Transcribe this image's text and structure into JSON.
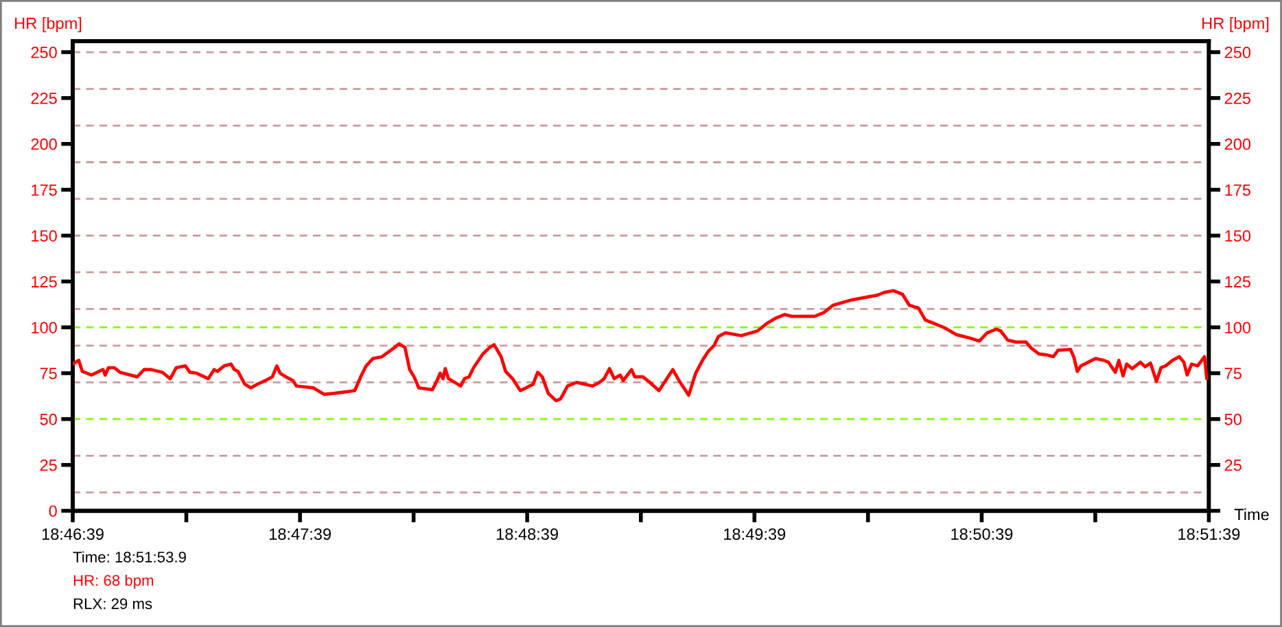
{
  "chart_data": {
    "type": "line",
    "xlabel": "Time",
    "ylabel": "HR [bpm]",
    "y2label": "HR [bpm]",
    "color": "#ff0000",
    "marker": "none",
    "line_style": "solid",
    "grid": false,
    "legend": false,
    "xlim": [
      18.7775,
      18.86083
    ],
    "xticks": [
      {
        "value": 18.7775,
        "label": "18:46:39"
      },
      {
        "value": 18.78583,
        "label": null
      },
      {
        "value": 18.79417,
        "label": "18:47:39"
      },
      {
        "value": 18.8025,
        "label": null
      },
      {
        "value": 18.81083,
        "label": "18:48:39"
      },
      {
        "value": 18.81917,
        "label": null
      },
      {
        "value": 18.8275,
        "label": "18:49:39"
      },
      {
        "value": 18.83583,
        "label": null
      },
      {
        "value": 18.84417,
        "label": "18:50:39"
      },
      {
        "value": 18.8525,
        "label": null
      },
      {
        "value": 18.86083,
        "label": "18:51:39"
      }
    ],
    "ylim": [
      0,
      256
    ],
    "yticks": [
      0,
      25,
      50,
      75,
      100,
      125,
      150,
      175,
      200,
      225,
      250
    ],
    "y2lim": [
      0,
      256
    ],
    "y2ticks": [
      {
        "value": 0,
        "label": null
      },
      25,
      50,
      75,
      100,
      125,
      150,
      175,
      200,
      225,
      250
    ],
    "ref_lines": [
      {
        "axis": "y",
        "value": 10,
        "color": "#cc9999",
        "line_style": "dashed"
      },
      {
        "axis": "y",
        "value": 30,
        "color": "#cc9999",
        "line_style": "dashed"
      },
      {
        "axis": "y",
        "value": 50,
        "color": "#80ff00",
        "line_style": "dashed"
      },
      {
        "axis": "y",
        "value": 70,
        "color": "#cc9999",
        "line_style": "dashed"
      },
      {
        "axis": "y",
        "value": 90,
        "color": "#cc9999",
        "line_style": "dashed"
      },
      {
        "axis": "y",
        "value": 100,
        "color": "#80ff00",
        "line_style": "dashed"
      },
      {
        "axis": "y",
        "value": 110,
        "color": "#cc9999",
        "line_style": "dashed"
      },
      {
        "axis": "y",
        "value": 130,
        "color": "#cc9999",
        "line_style": "dashed"
      },
      {
        "axis": "y",
        "value": 150,
        "color": "#cc9999",
        "line_style": "dashed"
      },
      {
        "axis": "y",
        "value": 170,
        "color": "#cc9999",
        "line_style": "dashed"
      },
      {
        "axis": "y",
        "value": 190,
        "color": "#cc9999",
        "line_style": "dashed"
      },
      {
        "axis": "y",
        "value": 210,
        "color": "#cc9999",
        "line_style": "dashed"
      },
      {
        "axis": "y",
        "value": 230,
        "color": "#cc9999",
        "line_style": "dashed"
      },
      {
        "axis": "y",
        "value": 250,
        "color": "#cc9999",
        "line_style": "dashed"
      }
    ],
    "annotations": [
      "Time: 18:51:53.9",
      "HR: 68 bpm",
      "RLX: 29 ms"
    ],
    "x": [
      18.7775,
      18.77794,
      18.7782,
      18.77888,
      18.77972,
      18.77988,
      18.78012,
      18.78055,
      18.78096,
      18.78223,
      18.78274,
      18.78324,
      18.78408,
      18.78465,
      18.78509,
      18.78576,
      18.78609,
      18.7866,
      18.78744,
      18.78787,
      18.78811,
      18.78861,
      18.78911,
      18.78935,
      18.78962,
      18.79012,
      18.79056,
      18.79103,
      18.79163,
      18.79214,
      18.79247,
      18.79271,
      18.79314,
      18.79365,
      18.79391,
      18.79516,
      18.79549,
      18.79593,
      18.79667,
      18.79818,
      18.79868,
      18.79902,
      18.79952,
      18.80019,
      18.8011,
      18.80143,
      18.80187,
      18.80221,
      18.80254,
      18.80288,
      18.80388,
      18.80422,
      18.80445,
      18.80466,
      18.80482,
      18.80506,
      18.80596,
      18.80623,
      18.80657,
      18.8069,
      18.80758,
      18.80808,
      18.80841,
      18.80892,
      18.80925,
      18.80976,
      18.81033,
      18.81127,
      18.8116,
      18.81194,
      18.81238,
      18.81295,
      18.81328,
      18.81379,
      18.81446,
      18.81563,
      18.81614,
      18.81647,
      18.81687,
      18.81721,
      18.81765,
      18.81788,
      18.81849,
      18.81872,
      18.81932,
      18.81983,
      18.8205,
      18.82151,
      18.82201,
      18.82268,
      18.82319,
      18.82369,
      18.82412,
      18.82453,
      18.82486,
      18.82537,
      18.82654,
      18.82772,
      18.82839,
      18.82906,
      18.82973,
      18.83023,
      18.83191,
      18.83258,
      18.83326,
      18.83466,
      18.83651,
      18.83701,
      18.83769,
      18.83836,
      18.83886,
      18.83953,
      18.84004,
      18.84138,
      18.84232,
      18.84339,
      18.844,
      18.84457,
      18.84524,
      18.84557,
      18.84608,
      18.84668,
      18.84742,
      18.84776,
      18.84836,
      18.84893,
      18.84943,
      18.84977,
      18.85068,
      18.85094,
      18.85118,
      18.85145,
      18.85252,
      18.85313,
      18.85346,
      18.85397,
      18.85423,
      18.85454,
      18.8548,
      18.85521,
      18.85581,
      18.85615,
      18.85655,
      18.85699,
      18.85732,
      18.85766,
      18.85816,
      18.85866,
      18.859,
      18.85924,
      18.85957,
      18.86001,
      18.86051,
      18.86068
    ],
    "values": [
      80,
      82,
      76,
      74,
      77,
      74,
      78,
      78,
      75.5,
      73,
      77,
      77,
      75.5,
      72,
      78,
      79,
      75.5,
      75,
      72,
      77,
      76,
      79,
      80,
      77,
      76,
      69,
      67,
      69,
      71,
      73,
      79,
      75,
      73,
      71,
      68,
      67,
      65.5,
      63.5,
      64,
      65.5,
      74,
      79,
      83,
      84,
      89,
      91,
      89,
      77,
      73,
      67,
      66,
      71,
      75,
      72,
      77.5,
      72,
      68,
      72,
      73,
      78,
      85.5,
      89,
      90.5,
      84,
      76,
      72,
      65.5,
      69,
      75.5,
      73,
      64,
      60,
      61,
      68,
      70,
      68,
      70,
      72,
      77.5,
      72,
      74,
      71,
      77,
      73,
      73,
      70,
      65.5,
      77,
      70.5,
      63,
      75,
      82,
      87,
      90,
      95,
      97,
      95.5,
      98,
      102,
      105,
      107,
      106,
      106,
      108,
      112,
      115,
      117.5,
      119,
      120,
      118,
      112,
      110.5,
      104,
      100,
      96,
      94,
      92.5,
      97,
      99,
      98,
      93,
      92,
      92,
      89,
      85.5,
      85,
      84,
      87.5,
      88,
      83.5,
      76,
      79,
      83,
      82,
      81,
      75.5,
      82,
      73.5,
      80,
      77.5,
      81,
      78.5,
      80.5,
      70.5,
      78,
      79,
      82,
      84,
      81,
      74,
      80,
      79,
      84,
      72
    ]
  }
}
